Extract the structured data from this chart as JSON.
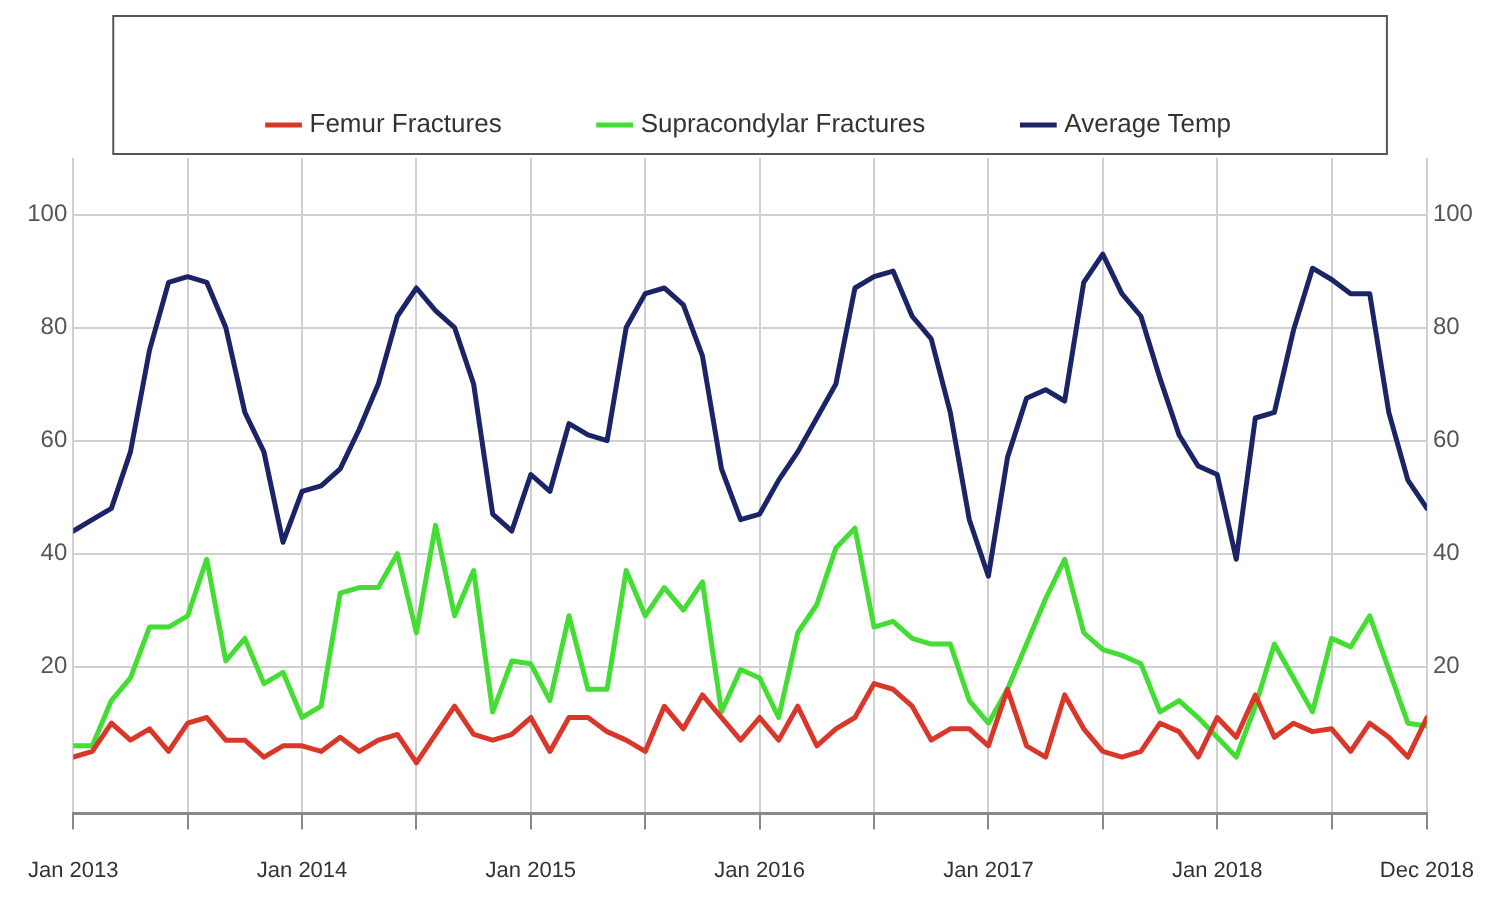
{
  "chart_data": {
    "type": "line",
    "x": [
      "2013-01",
      "2013-02",
      "2013-03",
      "2013-04",
      "2013-05",
      "2013-06",
      "2013-07",
      "2013-08",
      "2013-09",
      "2013-10",
      "2013-11",
      "2013-12",
      "2014-01",
      "2014-02",
      "2014-03",
      "2014-04",
      "2014-05",
      "2014-06",
      "2014-07",
      "2014-08",
      "2014-09",
      "2014-10",
      "2014-11",
      "2014-12",
      "2015-01",
      "2015-02",
      "2015-03",
      "2015-04",
      "2015-05",
      "2015-06",
      "2015-07",
      "2015-08",
      "2015-09",
      "2015-10",
      "2015-11",
      "2015-12",
      "2016-01",
      "2016-02",
      "2016-03",
      "2016-04",
      "2016-05",
      "2016-06",
      "2016-07",
      "2016-08",
      "2016-09",
      "2016-10",
      "2016-11",
      "2016-12",
      "2017-01",
      "2017-02",
      "2017-03",
      "2017-04",
      "2017-05",
      "2017-06",
      "2017-07",
      "2017-08",
      "2017-09",
      "2017-10",
      "2017-11",
      "2017-12",
      "2018-01",
      "2018-02",
      "2018-03",
      "2018-04",
      "2018-05",
      "2018-06",
      "2018-07",
      "2018-08",
      "2018-09",
      "2018-10",
      "2018-11",
      "2018-12"
    ],
    "series": [
      {
        "name": "Femur Fractures",
        "color": "#d9372a",
        "values": [
          4,
          5,
          10,
          7,
          9,
          5,
          10,
          11,
          7,
          7,
          4,
          6,
          6,
          5,
          7.5,
          5,
          7,
          8,
          3,
          8,
          13,
          8,
          7,
          8,
          11,
          5,
          11,
          11,
          8.5,
          7,
          5,
          13,
          9,
          15,
          11,
          7,
          11,
          7,
          13,
          6,
          9,
          11,
          17,
          16,
          13,
          7,
          9,
          9,
          6,
          16,
          6,
          4,
          15,
          9,
          5,
          4,
          5,
          10,
          8.5,
          4,
          11,
          7.5,
          15,
          7.5,
          10,
          8.5,
          9,
          5,
          10,
          7.5,
          4,
          11
        ]
      },
      {
        "name": "Supracondylar Fractures",
        "color": "#44dd33",
        "values": [
          6,
          6,
          14,
          18,
          27,
          27,
          29,
          39,
          21,
          25,
          17,
          19,
          11,
          13,
          33,
          34,
          34,
          40,
          26,
          45,
          29,
          37,
          12,
          21,
          20.5,
          14,
          29,
          16,
          16,
          37,
          29,
          34,
          30,
          35,
          12,
          19.5,
          18,
          11,
          26,
          31,
          41,
          44.5,
          27,
          28,
          25,
          24,
          24,
          14,
          10,
          16,
          24,
          32,
          39,
          26,
          23,
          22,
          20.5,
          12,
          14,
          11,
          7.5,
          4,
          13,
          24,
          18,
          12,
          25,
          23.5,
          29,
          19.5,
          10,
          9.5
        ]
      },
      {
        "name": "Average Temp",
        "color": "#1a2466",
        "values": [
          44,
          46,
          48,
          58,
          76,
          88,
          89,
          88,
          80,
          65,
          58,
          42,
          51,
          52,
          55,
          62,
          70,
          82,
          87,
          83,
          80,
          70,
          47,
          44,
          54,
          51,
          63,
          61,
          60,
          80,
          86,
          87,
          84,
          75,
          55,
          46,
          47,
          53,
          58,
          64,
          70,
          87,
          89,
          90,
          82,
          78,
          65,
          46,
          36,
          57,
          67.5,
          69,
          67,
          88,
          93,
          86,
          82,
          71,
          61,
          55.5,
          54,
          39,
          64,
          65,
          79.5,
          90.5,
          88.5,
          86,
          86,
          65,
          53,
          48
        ]
      }
    ],
    "xlim": [
      "2013-01",
      "2018-12"
    ],
    "xticks": [
      {
        "value": "2013-01",
        "label": "Jan 2013"
      },
      {
        "value": "2013-07",
        "label": null
      },
      {
        "value": "2014-01",
        "label": "Jan 2014"
      },
      {
        "value": "2014-07",
        "label": null
      },
      {
        "value": "2015-01",
        "label": "Jan 2015"
      },
      {
        "value": "2015-07",
        "label": null
      },
      {
        "value": "2016-01",
        "label": "Jan 2016"
      },
      {
        "value": "2016-07",
        "label": null
      },
      {
        "value": "2017-01",
        "label": "Jan 2017"
      },
      {
        "value": "2017-07",
        "label": null
      },
      {
        "value": "2018-01",
        "label": "Jan 2018"
      },
      {
        "value": "2018-07",
        "label": null
      },
      {
        "value": "2018-12",
        "label": "Dec 2018"
      }
    ],
    "ylim": [
      -6,
      110
    ],
    "yticks": [
      20,
      40,
      60,
      80,
      100
    ],
    "y2lim": [
      -6,
      110
    ],
    "y2ticks": [
      20,
      40,
      60,
      80,
      100
    ],
    "grid": true,
    "legend": "top",
    "marker": "none",
    "line_style": "solid"
  }
}
